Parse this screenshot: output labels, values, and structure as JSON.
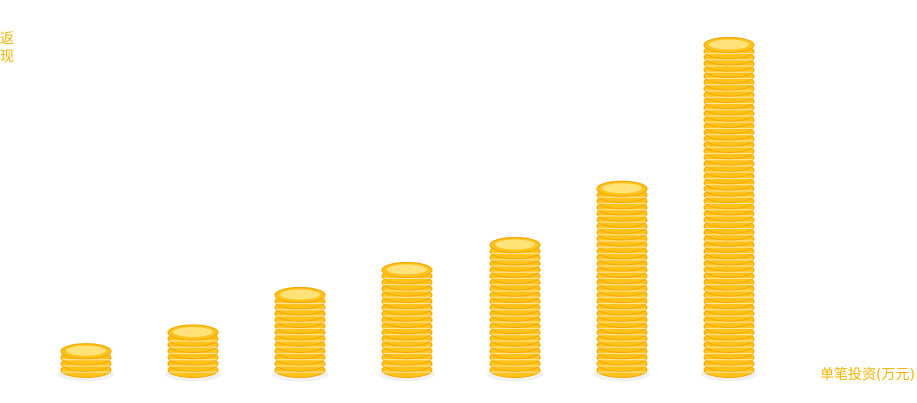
{
  "chart_data": {
    "type": "bar",
    "ylabel": "返现",
    "xlabel": "单笔投资(万元)",
    "values": [
      4,
      7,
      13,
      17,
      21,
      30,
      53
    ],
    "unit": "coins",
    "grid": false,
    "legend": "none",
    "coin_color": "#FFC21A",
    "coin_edge_color": "#F5A800",
    "coin_highlight_color": "#FFE37A"
  }
}
